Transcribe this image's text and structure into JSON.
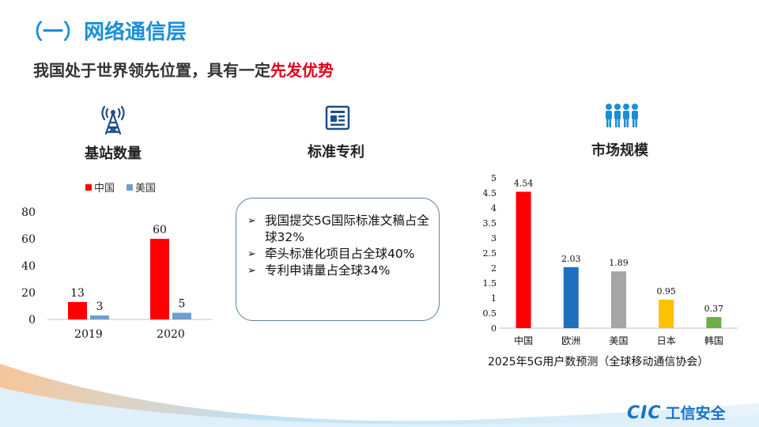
{
  "header": {
    "section_title": "（一）网络通信层",
    "subtitle_main": "我国处于世界领先位置，具有一定",
    "subtitle_highlight": "先发优势"
  },
  "columns": {
    "base_station": {
      "title": "基站数量",
      "icon": "cell-tower-icon"
    },
    "standard_patent": {
      "title": "标准专利",
      "icon": "document-icon"
    },
    "market": {
      "title": "市场规模",
      "icon": "people-group-icon"
    }
  },
  "patent_box": {
    "bullets": [
      "我国提交5G国际标准文稿占全球32%",
      "牵头标准化项目占全球40%",
      "专利申请量占全球34%"
    ]
  },
  "market_caption": "2025年5G用户数预测（全球移动通信协会）",
  "logo": {
    "text_en": "CIC",
    "text_cn": "工信安全"
  },
  "colors": {
    "accent_blue": "#1a8fd6",
    "highlight_red": "#e0001b",
    "china_red": "#ff0000",
    "us_blue": "#6f9fcf"
  },
  "chart_data": [
    {
      "type": "bar",
      "categories": [
        "2019",
        "2020"
      ],
      "series": [
        {
          "name": "中国",
          "values": [
            13,
            60
          ],
          "color": "#ff0000"
        },
        {
          "name": "美国",
          "values": [
            3,
            5
          ],
          "color": "#6f9fcf"
        }
      ],
      "ylim": [
        0,
        80
      ],
      "yticks": [
        "0",
        "20",
        "40",
        "60",
        "80"
      ],
      "legend": "top"
    },
    {
      "type": "bar",
      "categories": [
        "中国",
        "欧洲",
        "美国",
        "日本",
        "韩国"
      ],
      "values": [
        4.54,
        2.03,
        1.89,
        0.95,
        0.37
      ],
      "value_labels": [
        "4.54",
        "2.03",
        "1.89",
        "0.95",
        "0.37"
      ],
      "colors": [
        "#ff0000",
        "#1f6fc0",
        "#a5a5a5",
        "#ffc000",
        "#70ad47"
      ],
      "ylim": [
        0,
        5
      ],
      "yticks": [
        "0",
        "0.5",
        "1",
        "1.5",
        "2",
        "2.5",
        "3",
        "3.5",
        "4",
        "4.5",
        "5"
      ]
    }
  ]
}
